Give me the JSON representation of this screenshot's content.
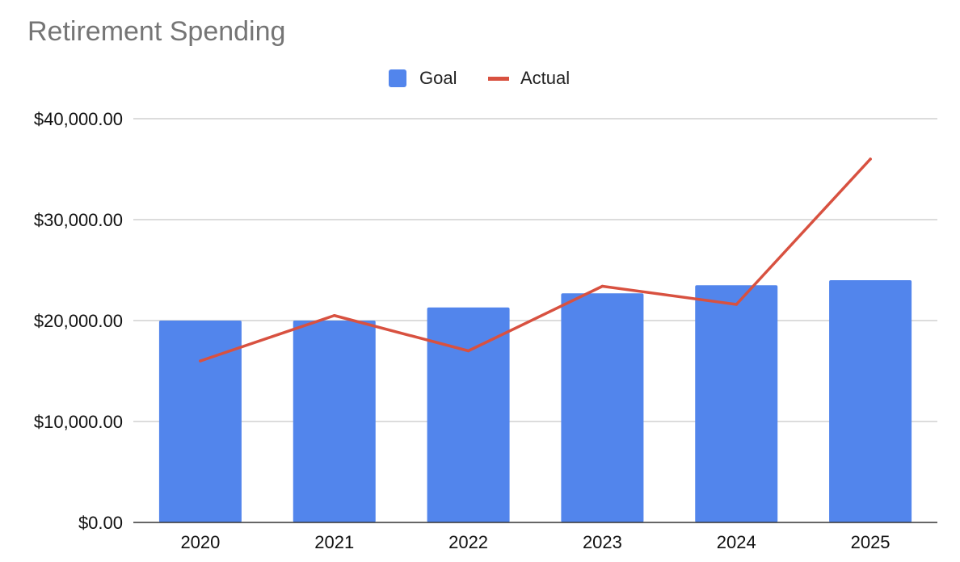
{
  "chart_data": {
    "type": "bar",
    "title": "Retirement Spending",
    "categories": [
      "2020",
      "2021",
      "2022",
      "2023",
      "2024",
      "2025"
    ],
    "series": [
      {
        "name": "Goal",
        "type": "bar",
        "color": "#5285EC",
        "values": [
          20000,
          20000,
          21300,
          22700,
          23500,
          24000
        ]
      },
      {
        "name": "Actual",
        "type": "line",
        "color": "#D85140",
        "values": [
          16000,
          20500,
          17000,
          23400,
          21600,
          36000
        ]
      }
    ],
    "ylim": [
      0,
      40000
    ],
    "yticks": [
      0,
      10000,
      20000,
      30000,
      40000
    ],
    "ytick_labels": [
      "$0.00",
      "$10,000.00",
      "$20,000.00",
      "$30,000.00",
      "$40,000.00"
    ],
    "xlabel": "",
    "ylabel": "",
    "grid": true,
    "legend_position": "top-center"
  }
}
